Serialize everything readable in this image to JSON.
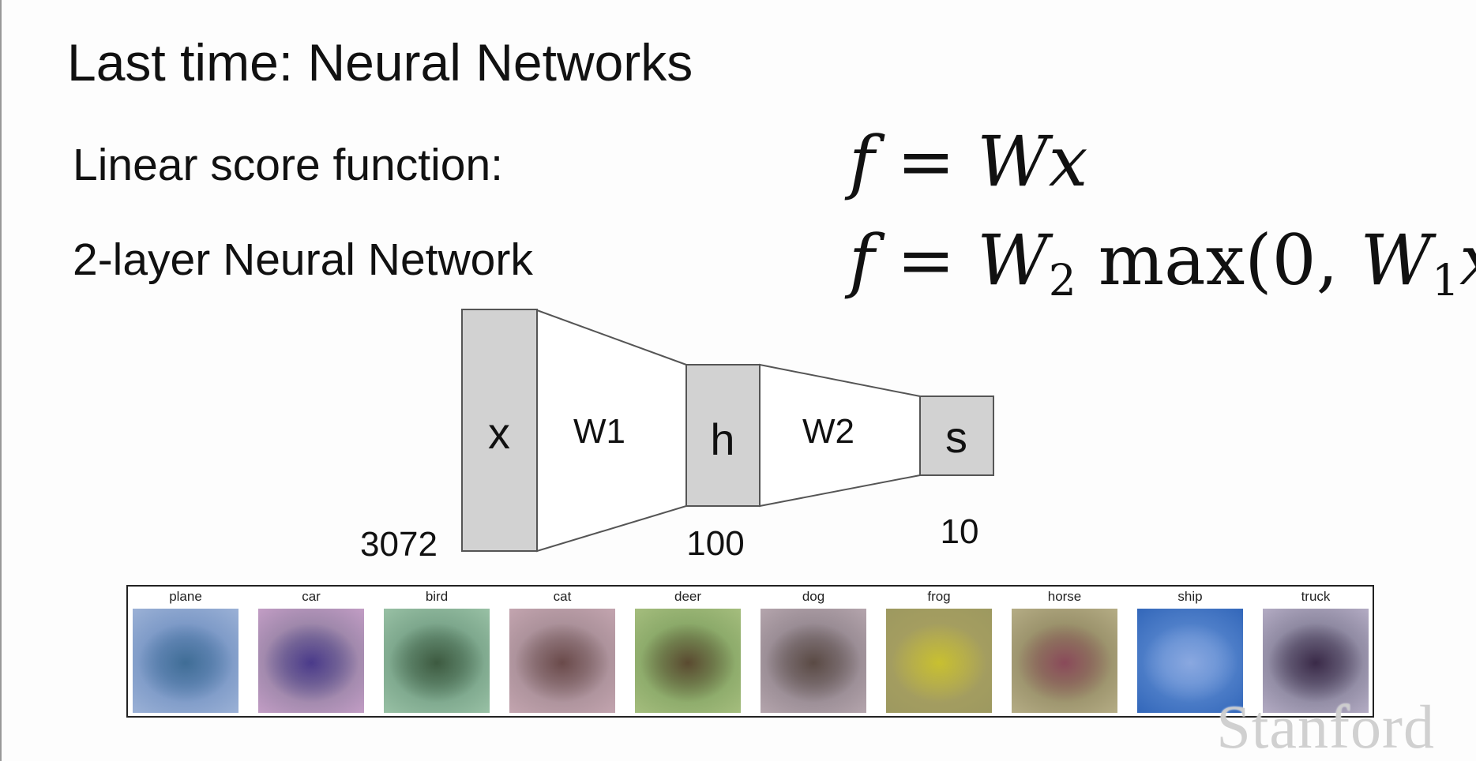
{
  "slide": {
    "title": "Last time: Neural Networks",
    "rows": [
      {
        "label": "Linear score function:",
        "formula": {
          "lhs": "f",
          "eq": "=",
          "w": "W",
          "x": "x"
        }
      },
      {
        "label": "2-layer Neural Network",
        "formula": {
          "lhs": "f",
          "eq": "=",
          "w2": "W",
          "sub2": "2",
          "fn": "max(0,",
          "w1": "W",
          "sub1": "1",
          "x": "x",
          "close": ")"
        }
      }
    ]
  },
  "diagram": {
    "nodes": [
      {
        "symbol": "x",
        "size": "3072"
      },
      {
        "symbol": "h",
        "size": "100"
      },
      {
        "symbol": "s",
        "size": "10"
      }
    ],
    "weights": [
      "W1",
      "W2"
    ],
    "colors": {
      "node_fill": "#d2d2d2",
      "stroke": "#555555"
    }
  },
  "templates": {
    "classes": [
      "plane",
      "car",
      "bird",
      "cat",
      "deer",
      "dog",
      "frog",
      "horse",
      "ship",
      "truck"
    ],
    "tile_colors": [
      {
        "base": "#6f8fc0",
        "center": "#3f6d96",
        "edge": "#9fb4d8"
      },
      {
        "base": "#8d7d9e",
        "center": "#4a3a8a",
        "edge": "#c7a0c8"
      },
      {
        "base": "#6f9a80",
        "center": "#3d5a40",
        "edge": "#9cc4a8"
      },
      {
        "base": "#a08890",
        "center": "#6a4a4a",
        "edge": "#c6a7b2"
      },
      {
        "base": "#7fa060",
        "center": "#5a4a30",
        "edge": "#a8c080"
      },
      {
        "base": "#8c8088",
        "center": "#5a4a44",
        "edge": "#b8a8b0"
      },
      {
        "base": "#a8a060",
        "center": "#c8c030",
        "edge": "#9c9860"
      },
      {
        "base": "#8f8660",
        "center": "#8a4a5a",
        "edge": "#b8b088"
      },
      {
        "base": "#5c8ad0",
        "center": "#8aa8e0",
        "edge": "#2f64b8"
      },
      {
        "base": "#7c7890",
        "center": "#3a2a48",
        "edge": "#b8b0c8"
      }
    ]
  },
  "watermark": "Stanford"
}
